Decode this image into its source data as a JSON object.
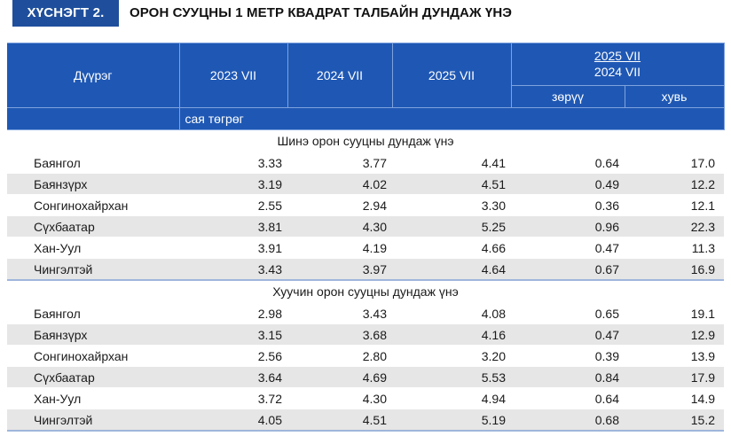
{
  "title": {
    "badge": "ХҮСНЭГТ 2.",
    "text": "ОРОН СУУЦНЫ 1 МЕТР КВАДРАТ ТАЛБАЙН ДУНДАЖ ҮНЭ"
  },
  "header": {
    "region": "Дүүрэг",
    "years": [
      "2023 VII",
      "2024 VII",
      "2025 VII"
    ],
    "change_top": "2025 VII",
    "change_bottom": "2024 VII",
    "diff": "зөрүү",
    "pct": "хувь",
    "unit": "сая төгрөг"
  },
  "sections": [
    {
      "title": "Шинэ орон сууцны дундаж үнэ",
      "rows": [
        [
          "Баянгол",
          "3.33",
          "3.77",
          "4.41",
          "0.64",
          "17.0"
        ],
        [
          "Баянзүрх",
          "3.19",
          "4.02",
          "4.51",
          "0.49",
          "12.2"
        ],
        [
          "Сонгинохайрхан",
          "2.55",
          "2.94",
          "3.30",
          "0.36",
          "12.1"
        ],
        [
          "Сүхбаатар",
          "3.81",
          "4.30",
          "5.25",
          "0.96",
          "22.3"
        ],
        [
          "Хан-Уул",
          "3.91",
          "4.19",
          "4.66",
          "0.47",
          "11.3"
        ],
        [
          "Чингэлтэй",
          "3.43",
          "3.97",
          "4.64",
          "0.67",
          "16.9"
        ]
      ]
    },
    {
      "title": "Хуучин орон сууцны дундаж үнэ",
      "rows": [
        [
          "Баянгол",
          "2.98",
          "3.43",
          "4.08",
          "0.65",
          "19.1"
        ],
        [
          "Баянзүрх",
          "3.15",
          "3.68",
          "4.16",
          "0.47",
          "12.9"
        ],
        [
          "Сонгинохайрхан",
          "2.56",
          "2.80",
          "3.20",
          "0.39",
          "13.9"
        ],
        [
          "Сүхбаатар",
          "3.64",
          "4.69",
          "5.53",
          "0.84",
          "17.9"
        ],
        [
          "Хан-Уул",
          "3.72",
          "4.30",
          "4.94",
          "0.64",
          "14.9"
        ],
        [
          "Чингэлтэй",
          "4.05",
          "4.51",
          "5.19",
          "0.68",
          "15.2"
        ]
      ]
    }
  ]
}
